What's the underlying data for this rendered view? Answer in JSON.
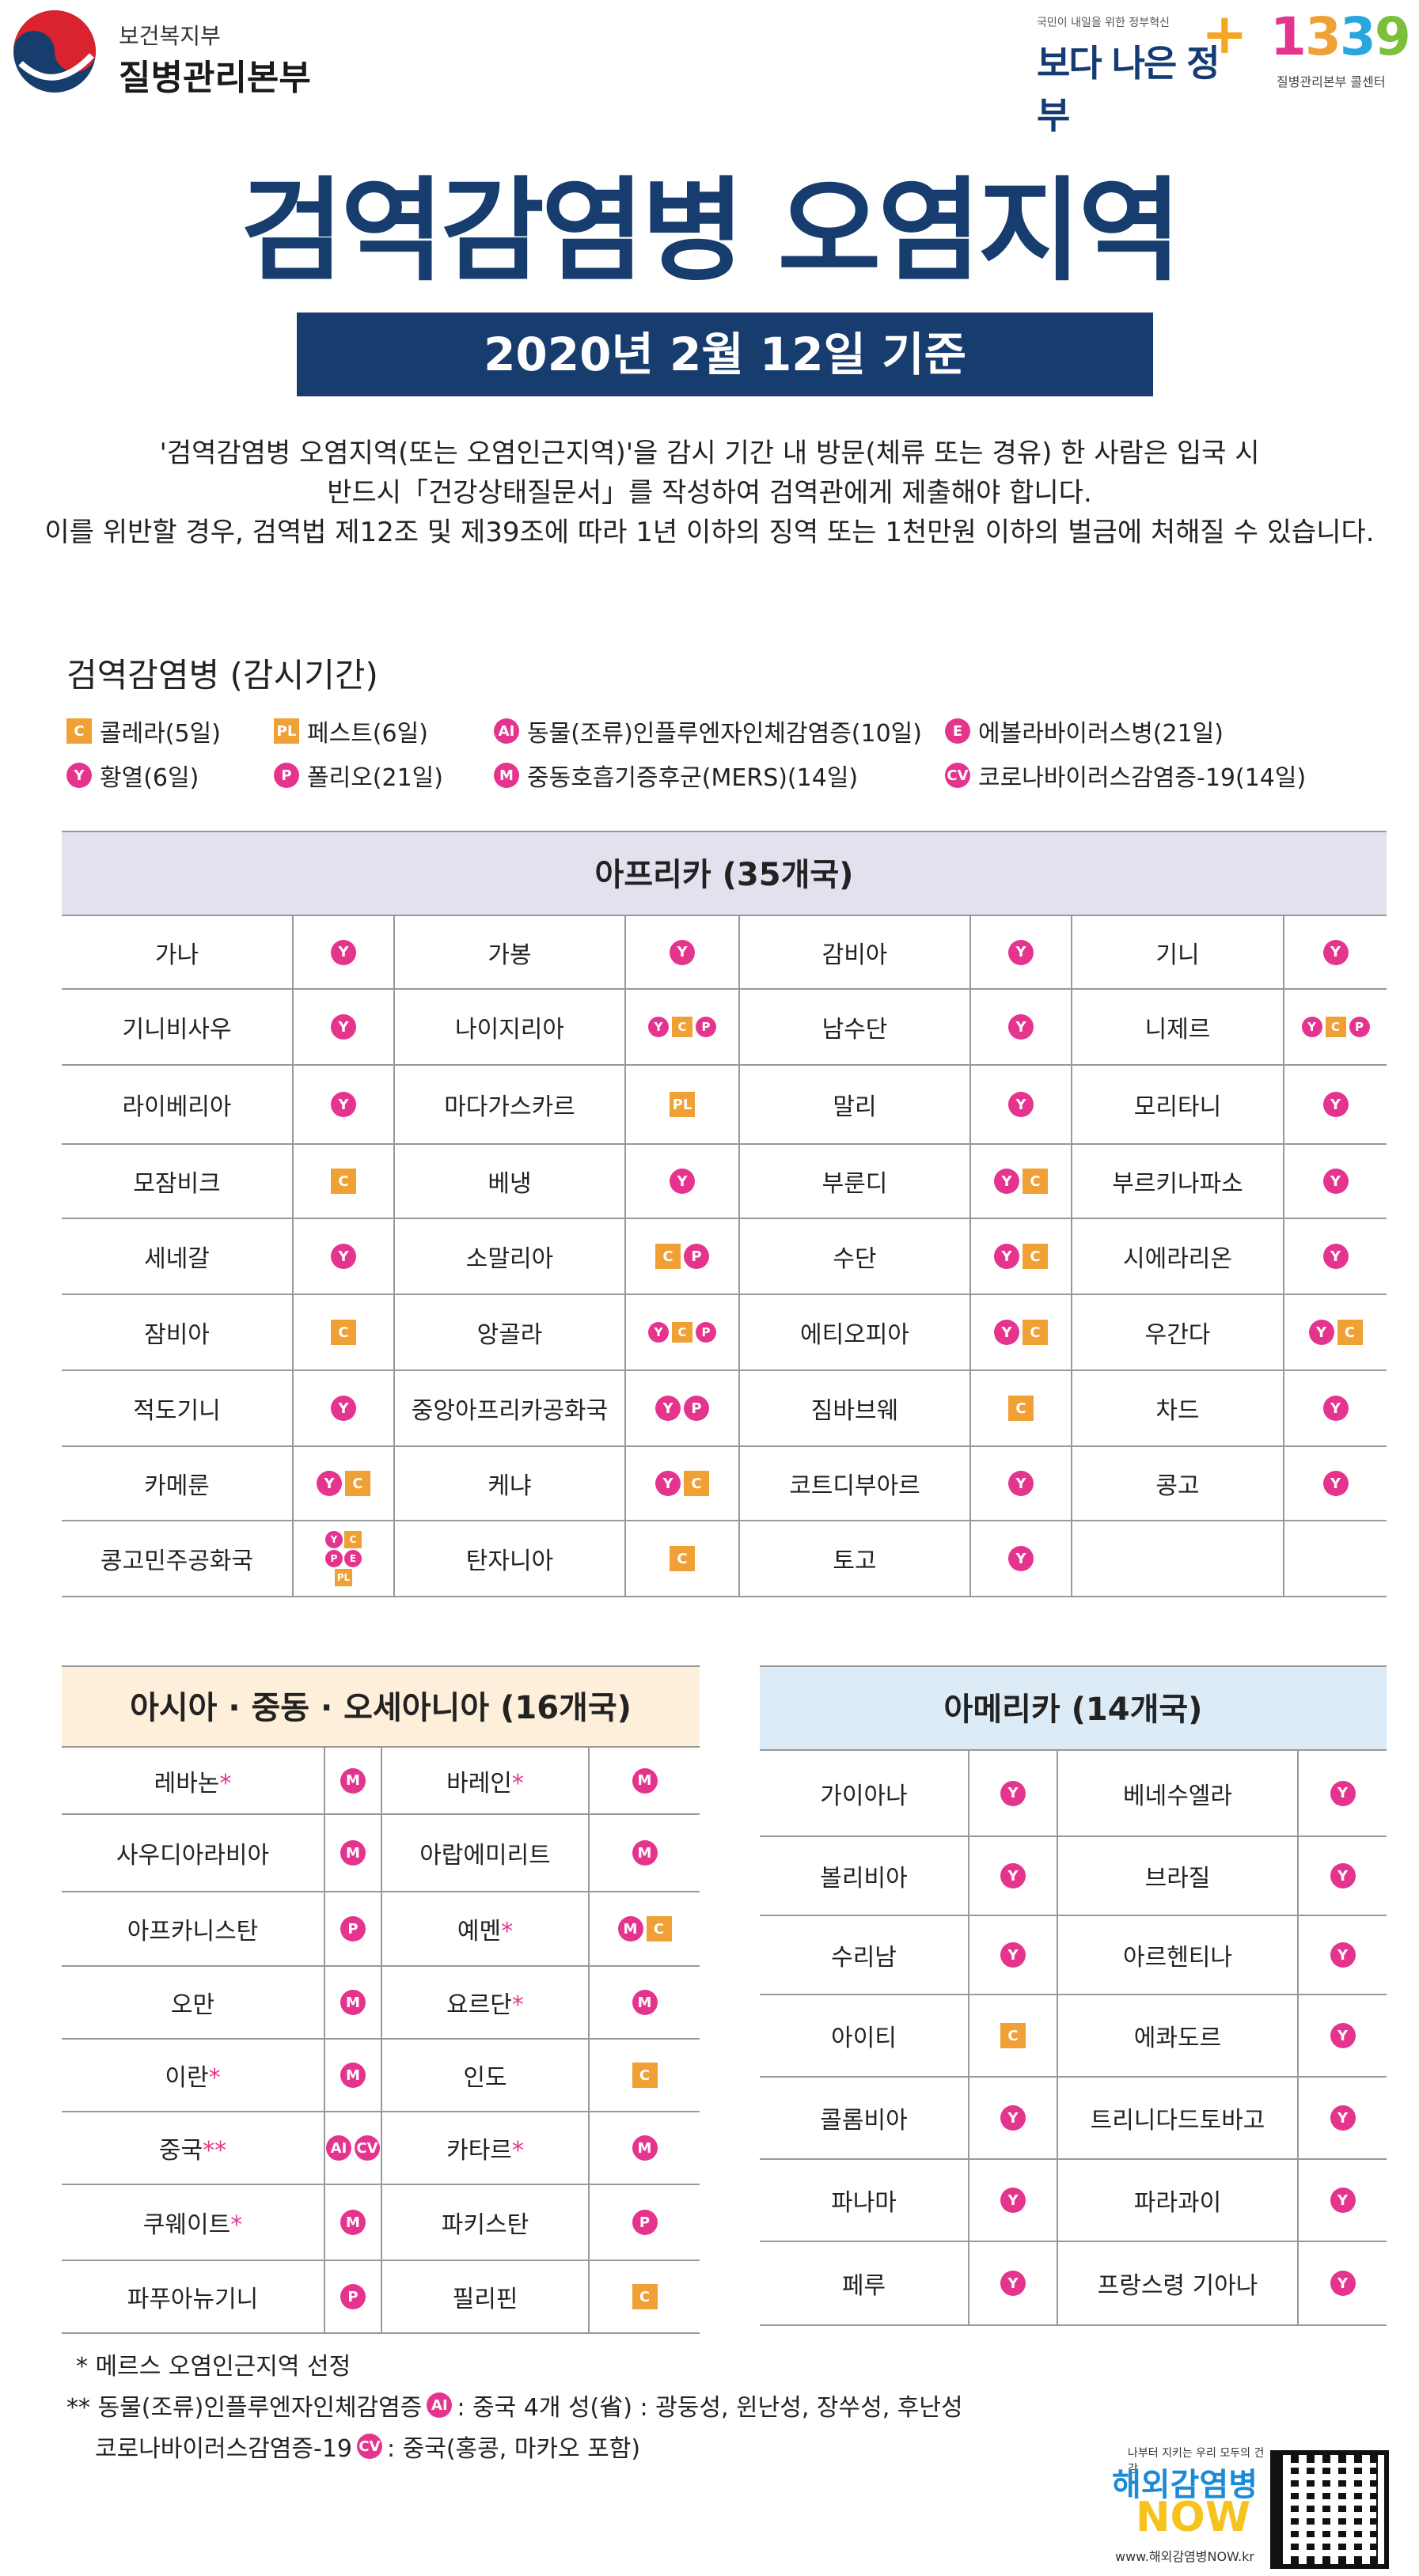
{
  "header": {
    "org_small": "보건복지부",
    "org_big": "질병관리본부",
    "gov_small": "국민이 내일을 위한 정부혁신",
    "gov_main": "보다 나은 정부",
    "call_number": "1339",
    "call_sub": "질병관리본부 콜센터"
  },
  "title": "검역감염병 오염지역",
  "date_label": "2020년 2월 12일 기준",
  "notice": [
    "'검역감염병 오염지역(또는 오염인근지역)'을 감시 기간 내 방문(체류 또는 경유) 한 사람은 입국 시",
    "반드시「건강상태질문서」를 작성하여 검역관에게 제출해야 합니다.",
    "이를 위반할 경우, 검역법 제12조 및 제39조에 따라 1년 이하의 징역 또는 1천만원 이하의 벌금에 처해질 수 있습니다."
  ],
  "legend": {
    "title": "검역감염병 (감시기간)",
    "items": [
      {
        "code": "C",
        "shape": "sq",
        "label": "콜레라(5일)"
      },
      {
        "code": "PL",
        "shape": "sq",
        "label": "페스트(6일)"
      },
      {
        "code": "AI",
        "shape": "circ",
        "label": "동물(조류)인플루엔자인체감염증(10일)"
      },
      {
        "code": "E",
        "shape": "circ",
        "label": "에볼라바이러스병(21일)"
      },
      {
        "code": "Y",
        "shape": "circ",
        "label": "황열(6일)"
      },
      {
        "code": "P",
        "shape": "circ",
        "label": "폴리오(21일)"
      },
      {
        "code": "M",
        "shape": "circ",
        "label": "중동호흡기증후군(MERS)(14일)"
      },
      {
        "code": "CV",
        "shape": "circ",
        "label": "코로나바이러스감염증-19(14일)"
      }
    ]
  },
  "colors": {
    "navy": "#173c6e",
    "magenta": "#e5348d",
    "orange": "#f0a034",
    "africa_head": "#e4e1ef",
    "asia_head": "#fdefd9",
    "america_head": "#dcebf6"
  },
  "africa": {
    "heading": "아프리카 (35개국)",
    "rows": [
      [
        [
          "가나",
          [
            "Y"
          ]
        ],
        [
          "가봉",
          [
            "Y"
          ]
        ],
        [
          "감비아",
          [
            "Y"
          ]
        ],
        [
          "기니",
          [
            "Y"
          ]
        ]
      ],
      [
        [
          "기니비사우",
          [
            "Y"
          ]
        ],
        [
          "나이지리아",
          [
            "Y",
            "C",
            "P"
          ]
        ],
        [
          "남수단",
          [
            "Y"
          ]
        ],
        [
          "니제르",
          [
            "Y",
            "C",
            "P"
          ]
        ]
      ],
      [
        [
          "라이베리아",
          [
            "Y"
          ]
        ],
        [
          "마다가스카르",
          [
            "PL"
          ]
        ],
        [
          "말리",
          [
            "Y"
          ]
        ],
        [
          "모리타니",
          [
            "Y"
          ]
        ]
      ],
      [
        [
          "모잠비크",
          [
            "C"
          ]
        ],
        [
          "베냉",
          [
            "Y"
          ]
        ],
        [
          "부룬디",
          [
            "Y",
            "C"
          ]
        ],
        [
          "부르키나파소",
          [
            "Y"
          ]
        ]
      ],
      [
        [
          "세네갈",
          [
            "Y"
          ]
        ],
        [
          "소말리아",
          [
            "C",
            "P"
          ]
        ],
        [
          "수단",
          [
            "Y",
            "C"
          ]
        ],
        [
          "시에라리온",
          [
            "Y"
          ]
        ]
      ],
      [
        [
          "잠비아",
          [
            "C"
          ]
        ],
        [
          "앙골라",
          [
            "Y",
            "C",
            "P"
          ]
        ],
        [
          "에티오피아",
          [
            "Y",
            "C"
          ]
        ],
        [
          "우간다",
          [
            "Y",
            "C"
          ]
        ]
      ],
      [
        [
          "적도기니",
          [
            "Y"
          ]
        ],
        [
          "중앙아프리카공화국",
          [
            "Y",
            "P"
          ]
        ],
        [
          "짐바브웨",
          [
            "C"
          ]
        ],
        [
          "차드",
          [
            "Y"
          ]
        ]
      ],
      [
        [
          "카메룬",
          [
            "Y",
            "C"
          ]
        ],
        [
          "케냐",
          [
            "Y",
            "C"
          ]
        ],
        [
          "코트디부아르",
          [
            "Y"
          ]
        ],
        [
          "콩고",
          [
            "Y"
          ]
        ]
      ],
      [
        [
          "콩고민주공화국",
          [
            "Y",
            "C",
            "P",
            "E",
            "PL"
          ]
        ],
        [
          "탄자니아",
          [
            "C"
          ]
        ],
        [
          "토고",
          [
            "Y"
          ]
        ],
        [
          "",
          []
        ]
      ]
    ]
  },
  "asia": {
    "heading": "아시아 · 중동 · 오세아니아 (16개국)",
    "rows": [
      [
        [
          "레바논",
          "*",
          [
            "M"
          ]
        ],
        [
          "바레인",
          "*",
          [
            "M"
          ]
        ]
      ],
      [
        [
          "사우디아라비아",
          "",
          [
            "M"
          ]
        ],
        [
          "아랍에미리트",
          "",
          [
            "M"
          ]
        ]
      ],
      [
        [
          "아프카니스탄",
          "",
          [
            "P"
          ]
        ],
        [
          "예멘",
          "*",
          [
            "M",
            "C"
          ]
        ]
      ],
      [
        [
          "오만",
          "",
          [
            "M"
          ]
        ],
        [
          "요르단",
          "*",
          [
            "M"
          ]
        ]
      ],
      [
        [
          "이란",
          "*",
          [
            "M"
          ]
        ],
        [
          "인도",
          "",
          [
            "C"
          ]
        ]
      ],
      [
        [
          "중국",
          "**",
          [
            "AI",
            "CV"
          ]
        ],
        [
          "카타르",
          "*",
          [
            "M"
          ]
        ]
      ],
      [
        [
          "쿠웨이트",
          "*",
          [
            "M"
          ]
        ],
        [
          "파키스탄",
          "",
          [
            "P"
          ]
        ]
      ],
      [
        [
          "파푸아뉴기니",
          "",
          [
            "P"
          ]
        ],
        [
          "필리핀",
          "",
          [
            "C"
          ]
        ]
      ]
    ]
  },
  "america": {
    "heading": "아메리카 (14개국)",
    "rows": [
      [
        [
          "가이아나",
          [
            "Y"
          ]
        ],
        [
          "베네수엘라",
          [
            "Y"
          ]
        ]
      ],
      [
        [
          "볼리비아",
          [
            "Y"
          ]
        ],
        [
          "브라질",
          [
            "Y"
          ]
        ]
      ],
      [
        [
          "수리남",
          [
            "Y"
          ]
        ],
        [
          "아르헨티나",
          [
            "Y"
          ]
        ]
      ],
      [
        [
          "아이티",
          [
            "C"
          ]
        ],
        [
          "에콰도르",
          [
            "Y"
          ]
        ]
      ],
      [
        [
          "콜롬비아",
          [
            "Y"
          ]
        ],
        [
          "트리니다드토바고",
          [
            "Y"
          ]
        ]
      ],
      [
        [
          "파나마",
          [
            "Y"
          ]
        ],
        [
          "파라과이",
          [
            "Y"
          ]
        ]
      ],
      [
        [
          "페루",
          [
            "Y"
          ]
        ],
        [
          "프랑스령 기아나",
          [
            "Y"
          ]
        ]
      ]
    ]
  },
  "footnotes": {
    "note1": "* 메르스 오염인근지역 선정",
    "note2_prefix": "** 동물(조류)인플루엔자인체감염증",
    "note2_code": "AI",
    "note2_suffix": ": 중국 4개 성(省) : 광둥성, 윈난성, 장쑤성, 후난성",
    "note3_prefix": "코로나바이러스감염증-19",
    "note3_code": "CV",
    "note3_suffix": ": 중국(홍콩, 마카오 포함)"
  },
  "now_logo": {
    "small": "나부터 지키는 우리 모두의 건강",
    "main": "해외감염병",
    "now": "NOW",
    "url": "www.해외감염병NOW.kr"
  }
}
